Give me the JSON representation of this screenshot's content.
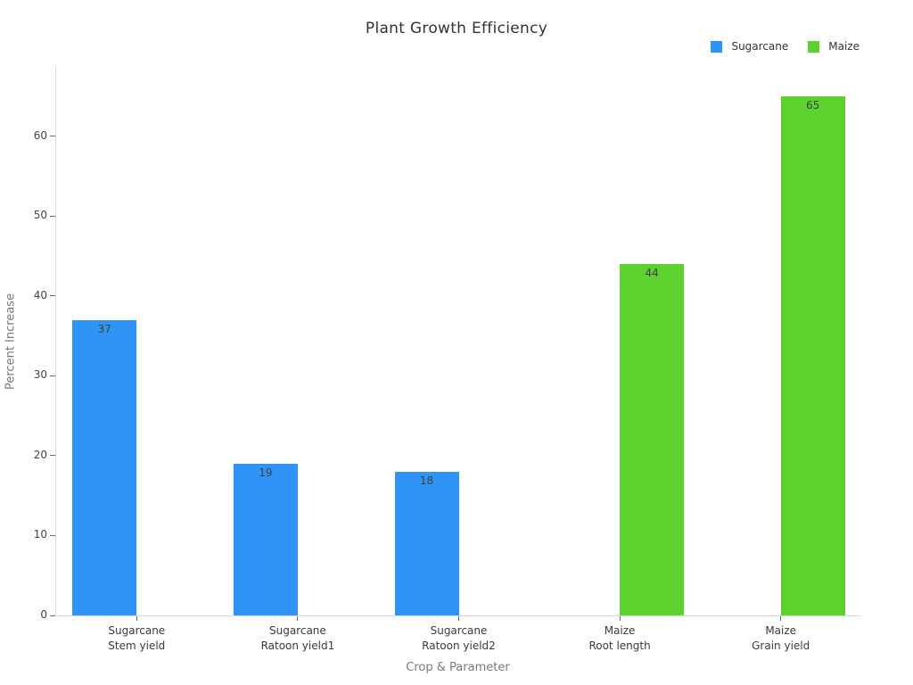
{
  "chart_data": {
    "type": "bar",
    "title": "Plant Growth Efficiency",
    "xlabel": "Crop & Parameter",
    "ylabel": "Percent Increase",
    "ylim": [
      0,
      68.7
    ],
    "yticks": [
      0,
      10,
      20,
      30,
      40,
      50,
      60
    ],
    "grid": false,
    "legend_position": "top-right",
    "bar_layout": "grouped-two-slots",
    "series": [
      {
        "name": "Sugarcane",
        "color": "#2F94F5"
      },
      {
        "name": "Maize",
        "color": "#5DD22E"
      }
    ],
    "bars": [
      {
        "crop": "Sugarcane",
        "parameter": "Stem yield",
        "series": "Sugarcane",
        "value": 37
      },
      {
        "crop": "Sugarcane",
        "parameter": "Ratoon yield1",
        "series": "Sugarcane",
        "value": 19
      },
      {
        "crop": "Sugarcane",
        "parameter": "Ratoon yield2",
        "series": "Sugarcane",
        "value": 18
      },
      {
        "crop": "Maize",
        "parameter": "Root length",
        "series": "Maize",
        "value": 44
      },
      {
        "crop": "Maize",
        "parameter": "Grain yield",
        "series": "Maize",
        "value": 65
      }
    ]
  }
}
